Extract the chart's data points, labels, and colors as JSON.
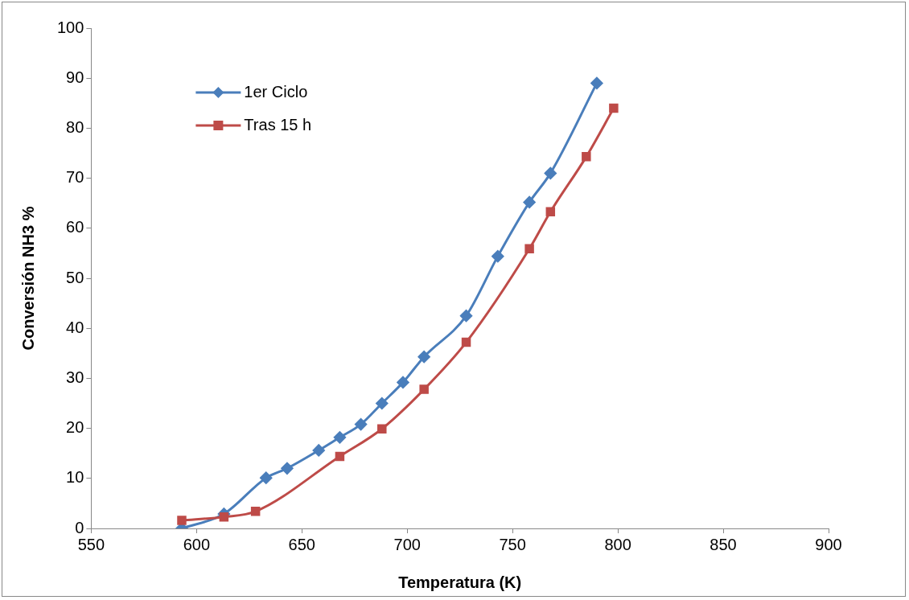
{
  "chart_data": {
    "type": "line",
    "xlabel": "Temperatura (K)",
    "ylabel": "Conversión NH3 %",
    "xlim": [
      550,
      900
    ],
    "xticks": [
      550,
      600,
      650,
      700,
      750,
      800,
      850,
      900
    ],
    "ylim": [
      0,
      100
    ],
    "yticks": [
      0,
      10,
      20,
      30,
      40,
      50,
      60,
      70,
      80,
      90,
      100
    ],
    "grid": false,
    "legend": "top left",
    "series": [
      {
        "name": "1er Ciclo",
        "color": "#4a7ebb",
        "marker": "diamond",
        "x": [
          593,
          613,
          633,
          643,
          658,
          668,
          678,
          688,
          698,
          708,
          728,
          743,
          758,
          768,
          790
        ],
        "values": [
          0,
          2.9,
          10.1,
          12,
          15.6,
          18.2,
          20.8,
          25,
          29.2,
          34.3,
          42.5,
          54.4,
          65.2,
          71,
          89
        ]
      },
      {
        "name": "Tras 15 h",
        "color": "#be4b48",
        "marker": "square",
        "x": [
          593,
          613,
          628,
          668,
          688,
          708,
          728,
          758,
          768,
          785,
          798
        ],
        "values": [
          1.6,
          2.3,
          3.4,
          14.4,
          19.9,
          27.8,
          37.2,
          55.9,
          63.3,
          74.3,
          84
        ]
      }
    ]
  }
}
